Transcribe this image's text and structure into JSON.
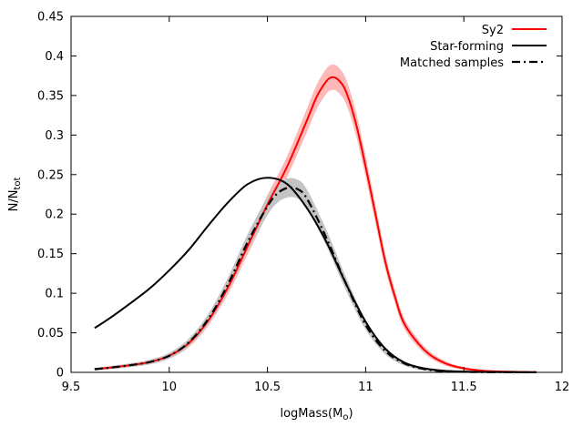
{
  "chart_data": {
    "type": "line",
    "title": "",
    "xlabel": {
      "base": "logMass(M",
      "sub": "o",
      "suffix": ")"
    },
    "ylabel": {
      "base": "N/N",
      "sub": "tot"
    },
    "xlim": [
      9.5,
      12.0
    ],
    "ylim": [
      0.0,
      0.45
    ],
    "x_ticks": [
      "9.5",
      "10",
      "10.5",
      "11",
      "11.5",
      "12"
    ],
    "y_ticks": [
      "0",
      "0.05",
      "0.1",
      "0.15",
      "0.2",
      "0.25",
      "0.3",
      "0.35",
      "0.4",
      "0.45"
    ],
    "grid": false,
    "legend_position": "top-right",
    "series": [
      {
        "name": "Sy2",
        "color": "#ff0000",
        "band_color": "#ffb8b8",
        "style": "solid",
        "x": [
          9.62,
          9.7,
          9.8,
          9.9,
          10.0,
          10.1,
          10.2,
          10.3,
          10.4,
          10.5,
          10.6,
          10.7,
          10.75,
          10.8,
          10.83,
          10.86,
          10.9,
          10.95,
          11.0,
          11.05,
          11.1,
          11.15,
          11.2,
          11.3,
          11.4,
          11.5,
          11.6,
          11.7,
          11.8,
          11.87
        ],
        "values": [
          0.004,
          0.006,
          0.009,
          0.013,
          0.021,
          0.037,
          0.066,
          0.108,
          0.16,
          0.212,
          0.26,
          0.318,
          0.348,
          0.368,
          0.373,
          0.37,
          0.355,
          0.315,
          0.26,
          0.2,
          0.14,
          0.095,
          0.06,
          0.028,
          0.012,
          0.005,
          0.002,
          0.001,
          0.0005,
          0.0003
        ],
        "band": 0.016
      },
      {
        "name": "Star-forming",
        "color": "#000000",
        "style": "solid",
        "x": [
          9.62,
          9.7,
          9.8,
          9.9,
          10.0,
          10.1,
          10.2,
          10.3,
          10.4,
          10.5,
          10.6,
          10.7,
          10.8,
          10.9,
          11.0,
          11.1,
          11.2,
          11.3,
          11.4,
          11.5,
          11.6,
          11.7,
          11.8,
          11.87
        ],
        "values": [
          0.056,
          0.069,
          0.087,
          0.106,
          0.129,
          0.155,
          0.186,
          0.215,
          0.238,
          0.246,
          0.238,
          0.208,
          0.165,
          0.112,
          0.064,
          0.03,
          0.012,
          0.005,
          0.002,
          0.001,
          0.0005,
          0.0003,
          0.0002,
          0.0001
        ]
      },
      {
        "name": "Matched samples",
        "color": "#000000",
        "band_color": "#c4c4c4",
        "style": "dash-dot",
        "x": [
          9.62,
          9.7,
          9.8,
          9.9,
          10.0,
          10.1,
          10.2,
          10.3,
          10.4,
          10.5,
          10.55,
          10.6,
          10.65,
          10.7,
          10.8,
          10.9,
          11.0,
          11.1,
          11.2,
          11.3,
          11.4,
          11.5,
          11.6,
          11.7,
          11.8,
          11.87
        ],
        "values": [
          0.004,
          0.006,
          0.009,
          0.013,
          0.021,
          0.038,
          0.068,
          0.112,
          0.165,
          0.21,
          0.226,
          0.233,
          0.232,
          0.22,
          0.17,
          0.112,
          0.06,
          0.027,
          0.011,
          0.004,
          0.0015,
          0.0006,
          0.0003,
          0.0002,
          0.0001,
          0.0001
        ],
        "band": 0.012
      }
    ]
  }
}
